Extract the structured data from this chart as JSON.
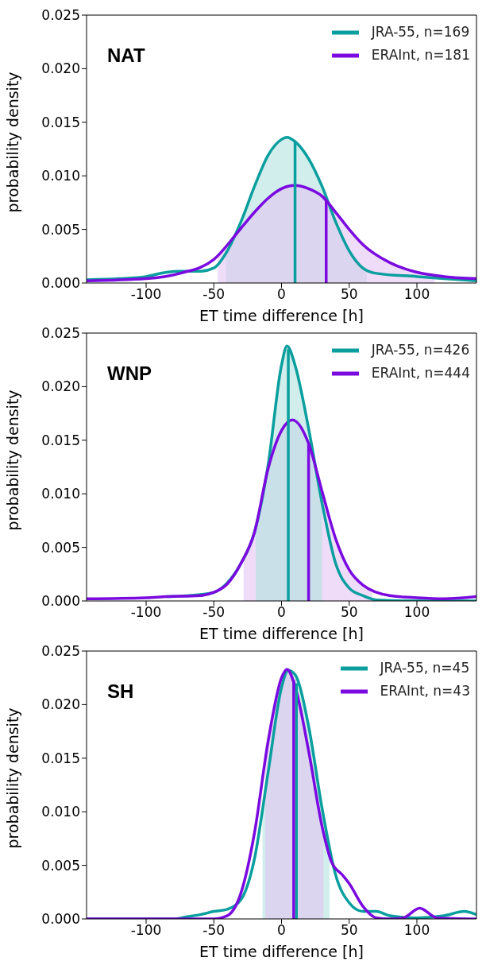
{
  "chart_data": [
    {
      "type": "line",
      "title": "NAT",
      "xlabel": "ET time difference [h]",
      "ylabel": "probability density",
      "xlim": [
        -144,
        144
      ],
      "xticks": [
        -100,
        -50,
        0,
        50,
        100
      ],
      "ylim": [
        0,
        0.025
      ],
      "yticks": [
        {
          "value": 0,
          "label": "0.000"
        },
        {
          "value": 0.005,
          "label": "0.005"
        },
        {
          "value": 0.01,
          "label": "0.010"
        },
        {
          "value": 0.015,
          "label": "0.015"
        },
        {
          "value": 0.02,
          "label": "0.020"
        },
        {
          "value": 0.025,
          "label": "0.025"
        }
      ],
      "legend": "top right",
      "marker": "none",
      "grid": false,
      "series": [
        {
          "type": "area",
          "color": "#b3e3df",
          "x": [
            -41,
            -30,
            -20,
            -10,
            0,
            4,
            10,
            20,
            30,
            40,
            50,
            63
          ],
          "values": [
            0.0027,
            0.0057,
            0.009,
            0.0119,
            0.0134,
            0.0136,
            0.0132,
            0.0116,
            0.009,
            0.0057,
            0.003,
            0.0013
          ]
        },
        {
          "type": "area",
          "color": "#e3c4f3",
          "x": [
            -47,
            -30,
            -20,
            -10,
            0,
            10,
            20,
            30,
            40,
            50,
            60,
            80,
            100,
            113
          ],
          "values": [
            0.0025,
            0.0051,
            0.0066,
            0.0079,
            0.0088,
            0.0091,
            0.0088,
            0.0081,
            0.0066,
            0.005,
            0.0036,
            0.0019,
            0.001,
            0.0007
          ]
        },
        {
          "name": "JRA-55, n=169",
          "color": "#0a9e9e",
          "x": [
            -144,
            -120,
            -100,
            -85,
            -75,
            -60,
            -50,
            -40,
            -30,
            -20,
            -10,
            0,
            4,
            10,
            20,
            30,
            40,
            50,
            60,
            70,
            100,
            120,
            144
          ],
          "values": [
            0.0003,
            0.0004,
            0.0006,
            0.001,
            0.0011,
            0.0011,
            0.0014,
            0.003,
            0.0057,
            0.009,
            0.0119,
            0.0134,
            0.0136,
            0.0132,
            0.0116,
            0.009,
            0.0057,
            0.003,
            0.0014,
            0.0009,
            0.0006,
            0.0004,
            0.0002
          ]
        },
        {
          "name": "ERAInt, n=181",
          "color": "#7a0adf",
          "x": [
            -144,
            -100,
            -75,
            -50,
            -30,
            -20,
            -10,
            0,
            10,
            20,
            30,
            40,
            50,
            60,
            80,
            100,
            120,
            144
          ],
          "values": [
            0.0002,
            0.0004,
            0.0009,
            0.0022,
            0.0051,
            0.0066,
            0.0079,
            0.0088,
            0.0091,
            0.0088,
            0.0081,
            0.0066,
            0.005,
            0.0036,
            0.0019,
            0.001,
            0.0006,
            0.0004
          ]
        },
        {
          "color": "#0a9e9e",
          "x": [
            10,
            10
          ],
          "values": [
            0,
            0.0133
          ]
        },
        {
          "color": "#7a0adf",
          "x": [
            33,
            33
          ],
          "values": [
            0,
            0.0077
          ]
        }
      ]
    },
    {
      "type": "line",
      "title": "WNP",
      "xlabel": "ET time difference [h]",
      "ylabel": "probability density",
      "xlim": [
        -144,
        144
      ],
      "xticks": [
        -100,
        -50,
        0,
        50,
        100
      ],
      "ylim": [
        0,
        0.025
      ],
      "yticks": [
        {
          "value": 0,
          "label": "0.000"
        },
        {
          "value": 0.005,
          "label": "0.005"
        },
        {
          "value": 0.01,
          "label": "0.010"
        },
        {
          "value": 0.015,
          "label": "0.015"
        },
        {
          "value": 0.02,
          "label": "0.020"
        },
        {
          "value": 0.025,
          "label": "0.025"
        }
      ],
      "legend": "top right",
      "marker": "none",
      "grid": false,
      "series": [
        {
          "type": "area",
          "color": "#e3c4f3",
          "x": [
            -28,
            -20,
            -10,
            0,
            8,
            20,
            30,
            40,
            50,
            60,
            67
          ],
          "values": [
            0.0041,
            0.0064,
            0.0123,
            0.0159,
            0.0169,
            0.0147,
            0.0102,
            0.0058,
            0.0029,
            0.0015,
            0.001
          ]
        },
        {
          "type": "area",
          "color": "#b3e3df",
          "x": [
            -19,
            -10,
            0,
            4,
            10,
            20,
            30
          ],
          "values": [
            0.0068,
            0.0126,
            0.022,
            0.0238,
            0.022,
            0.0161,
            0.0091
          ]
        },
        {
          "name": "JRA-55, n=426",
          "color": "#0a9e9e",
          "x": [
            -85,
            -60,
            -50,
            -40,
            -30,
            -20,
            -10,
            0,
            4,
            10,
            20,
            30,
            40,
            50,
            60,
            70,
            100,
            144
          ],
          "values": [
            0.0004,
            0.0006,
            0.0008,
            0.0017,
            0.0035,
            0.0064,
            0.0126,
            0.022,
            0.0238,
            0.022,
            0.0161,
            0.0091,
            0.0035,
            0.0012,
            0.0005,
            0.0001,
            0,
            0
          ]
        },
        {
          "name": "ERAInt, n=444",
          "color": "#7a0adf",
          "x": [
            -144,
            -100,
            -85,
            -60,
            -50,
            -40,
            -30,
            -20,
            -10,
            0,
            8,
            20,
            30,
            40,
            50,
            60,
            80,
            100,
            120,
            144
          ],
          "values": [
            0.0002,
            0.0003,
            0.0004,
            0.0005,
            0.0008,
            0.0016,
            0.0035,
            0.0064,
            0.0123,
            0.0159,
            0.0169,
            0.0147,
            0.0102,
            0.0058,
            0.0029,
            0.0015,
            0.0005,
            0.0003,
            0.0002,
            0.0004
          ]
        },
        {
          "color": "#0a9e9e",
          "x": [
            5,
            5
          ],
          "values": [
            0,
            0.0235
          ]
        },
        {
          "color": "#7a0adf",
          "x": [
            20,
            20
          ],
          "values": [
            0,
            0.0147
          ]
        }
      ]
    },
    {
      "type": "line",
      "title": "SH",
      "xlabel": "ET time difference [h]",
      "ylabel": "probability density",
      "xlim": [
        -144,
        144
      ],
      "xticks": [
        -100,
        -50,
        0,
        50,
        100
      ],
      "ylim": [
        0,
        0.025
      ],
      "yticks": [
        {
          "value": 0,
          "label": "0.000"
        },
        {
          "value": 0.005,
          "label": "0.005"
        },
        {
          "value": 0.01,
          "label": "0.010"
        },
        {
          "value": 0.015,
          "label": "0.015"
        },
        {
          "value": 0.02,
          "label": "0.020"
        },
        {
          "value": 0.025,
          "label": "0.025"
        }
      ],
      "legend": "top right",
      "marker": "none",
      "grid": false,
      "series": [
        {
          "type": "area",
          "color": "#b3e3df",
          "x": [
            -14,
            -10,
            0,
            5,
            10,
            20,
            30,
            35.5
          ],
          "values": [
            0.0105,
            0.0136,
            0.0216,
            0.0232,
            0.0228,
            0.018,
            0.0103,
            0.0068
          ]
        },
        {
          "type": "area",
          "color": "#e3c4f3",
          "x": [
            -12,
            -10,
            0,
            4,
            10,
            20,
            31
          ],
          "values": [
            0.0152,
            0.0165,
            0.0225,
            0.0233,
            0.0217,
            0.0157,
            0.0082
          ]
        },
        {
          "name": "JRA-55, n=45",
          "color": "#0a9e9e",
          "x": [
            -144,
            -80,
            -70,
            -60,
            -50,
            -40,
            -30,
            -20,
            -10,
            0,
            5,
            10,
            20,
            30,
            40,
            50,
            60,
            70,
            80,
            100,
            120,
            135,
            144
          ],
          "values": [
            0,
            0,
            0.0002,
            0.0004,
            0.0007,
            0.0009,
            0.0018,
            0.0056,
            0.0136,
            0.0216,
            0.0232,
            0.0228,
            0.018,
            0.0103,
            0.0041,
            0.0015,
            0.0007,
            0.0007,
            0.0003,
            0.0001,
            0.0003,
            0.0007,
            0.0004
          ]
        },
        {
          "name": "ERAInt, n=43",
          "color": "#7a0adf",
          "x": [
            -144,
            -50,
            -40,
            -30,
            -20,
            -10,
            0,
            4,
            10,
            20,
            30,
            37,
            45,
            50,
            60,
            70,
            80,
            90,
            102,
            115,
            144
          ],
          "values": [
            0,
            0,
            0.0003,
            0.0024,
            0.008,
            0.0165,
            0.0225,
            0.0233,
            0.0217,
            0.0157,
            0.0086,
            0.0053,
            0.0041,
            0.0033,
            0.0012,
            0.0001,
            0,
            0.0001,
            0.001,
            0.0001,
            0
          ]
        },
        {
          "color": "#0a9e9e",
          "x": [
            11,
            11
          ],
          "values": [
            0,
            0.022
          ]
        },
        {
          "color": "#7a0adf",
          "x": [
            9,
            9
          ],
          "values": [
            0,
            0.0223
          ]
        }
      ]
    }
  ]
}
